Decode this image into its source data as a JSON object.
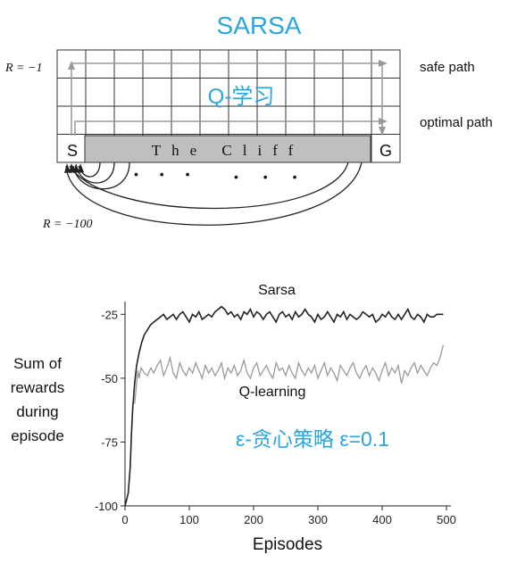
{
  "top_title": "SARSA",
  "q_overlay": "Q-学习",
  "gridworld": {
    "reward_step": "R = −1",
    "reward_cliff": "R = −100",
    "safe_label": "safe path",
    "optimal_label": "optimal path",
    "start_label": "S",
    "goal_label": "G",
    "cliff_label": "The Cliff",
    "dots_left": "• • •",
    "dots_right": "• • •",
    "cols": 12,
    "rows": 4
  },
  "overlay_caption": "ε-贪心策略 ε=0.1",
  "colors": {
    "accent": "#2aa7e0",
    "sarsa": "#222222",
    "qlearning": "#9a9a9a",
    "cliff": "#bfbfbf"
  },
  "chart_data": {
    "type": "line",
    "xlabel": "Episodes",
    "ylabel_lines": [
      "Sum of",
      "rewards",
      "during",
      "episode"
    ],
    "xlim": [
      0,
      500
    ],
    "ylim": [
      -100,
      -20
    ],
    "xticks": [
      "0",
      "100",
      "200",
      "300",
      "400",
      "500"
    ],
    "yticks": [
      "-25",
      "-50",
      "-75",
      "-100"
    ],
    "series": [
      {
        "name": "Sarsa",
        "x": [
          0,
          5,
          8,
          10,
          12,
          15,
          18,
          22,
          26,
          30,
          35,
          40,
          45,
          50,
          55,
          60,
          65,
          70,
          75,
          80,
          85,
          90,
          95,
          100,
          105,
          110,
          115,
          120,
          125,
          130,
          135,
          140,
          145,
          150,
          155,
          160,
          165,
          170,
          175,
          180,
          185,
          190,
          195,
          200,
          205,
          210,
          215,
          220,
          225,
          230,
          235,
          240,
          245,
          250,
          255,
          260,
          265,
          270,
          275,
          280,
          285,
          290,
          295,
          300,
          305,
          310,
          315,
          320,
          325,
          330,
          335,
          340,
          345,
          350,
          355,
          360,
          365,
          370,
          375,
          380,
          385,
          390,
          395,
          400,
          405,
          410,
          415,
          420,
          425,
          430,
          435,
          440,
          445,
          450,
          455,
          460,
          465,
          470,
          475,
          480,
          485,
          490,
          495
        ],
        "y": [
          -100,
          -95,
          -85,
          -72,
          -62,
          -52,
          -45,
          -40,
          -36,
          -33,
          -31,
          -29,
          -28,
          -27,
          -26,
          -25,
          -27,
          -26,
          -25,
          -27,
          -25,
          -24,
          -26,
          -28,
          -25,
          -26,
          -24,
          -27,
          -26,
          -25,
          -26,
          -24,
          -23,
          -22,
          -23,
          -25,
          -24,
          -26,
          -25,
          -27,
          -24,
          -25,
          -23,
          -26,
          -24,
          -25,
          -27,
          -25,
          -24,
          -26,
          -28,
          -25,
          -24,
          -26,
          -25,
          -27,
          -24,
          -26,
          -25,
          -23,
          -25,
          -26,
          -28,
          -25,
          -27,
          -26,
          -24,
          -26,
          -28,
          -25,
          -26,
          -24,
          -27,
          -25,
          -26,
          -27,
          -26,
          -24,
          -25,
          -26,
          -25,
          -28,
          -27,
          -25,
          -26,
          -24,
          -26,
          -27,
          -25,
          -27,
          -25,
          -23,
          -26,
          -27,
          -25,
          -26,
          -28,
          -25,
          -26,
          -26,
          -25,
          -25,
          -25
        ]
      },
      {
        "name": "Q-learning",
        "x": [
          15,
          18,
          20,
          22,
          25,
          30,
          35,
          40,
          45,
          50,
          55,
          60,
          65,
          70,
          75,
          80,
          85,
          90,
          95,
          100,
          105,
          110,
          115,
          120,
          125,
          130,
          135,
          140,
          145,
          150,
          155,
          160,
          165,
          170,
          175,
          180,
          185,
          190,
          195,
          200,
          205,
          210,
          215,
          220,
          225,
          230,
          235,
          240,
          245,
          250,
          255,
          260,
          265,
          270,
          275,
          280,
          285,
          290,
          295,
          300,
          305,
          310,
          315,
          320,
          325,
          330,
          335,
          340,
          345,
          350,
          355,
          360,
          365,
          370,
          375,
          380,
          385,
          390,
          395,
          400,
          405,
          410,
          415,
          420,
          425,
          430,
          435,
          440,
          445,
          450,
          455,
          460,
          465,
          470,
          475,
          480,
          485,
          490,
          495
        ],
        "y": [
          -60,
          -52,
          -47,
          -50,
          -46,
          -48,
          -49,
          -46,
          -48,
          -45,
          -43,
          -49,
          -46,
          -42,
          -48,
          -50,
          -44,
          -47,
          -49,
          -46,
          -48,
          -44,
          -47,
          -50,
          -45,
          -48,
          -46,
          -49,
          -47,
          -44,
          -50,
          -46,
          -48,
          -45,
          -49,
          -47,
          -43,
          -48,
          -50,
          -46,
          -44,
          -49,
          -47,
          -45,
          -48,
          -50,
          -44,
          -47,
          -46,
          -49,
          -45,
          -48,
          -50,
          -44,
          -47,
          -49,
          -46,
          -48,
          -45,
          -50,
          -47,
          -44,
          -49,
          -46,
          -48,
          -51,
          -45,
          -47,
          -49,
          -46,
          -44,
          -48,
          -50,
          -47,
          -45,
          -49,
          -46,
          -48,
          -51,
          -47,
          -44,
          -49,
          -46,
          -48,
          -45,
          -52,
          -47,
          -49,
          -46,
          -44,
          -48,
          -45,
          -47,
          -49,
          -46,
          -44,
          -45,
          -42,
          -37
        ]
      }
    ]
  }
}
